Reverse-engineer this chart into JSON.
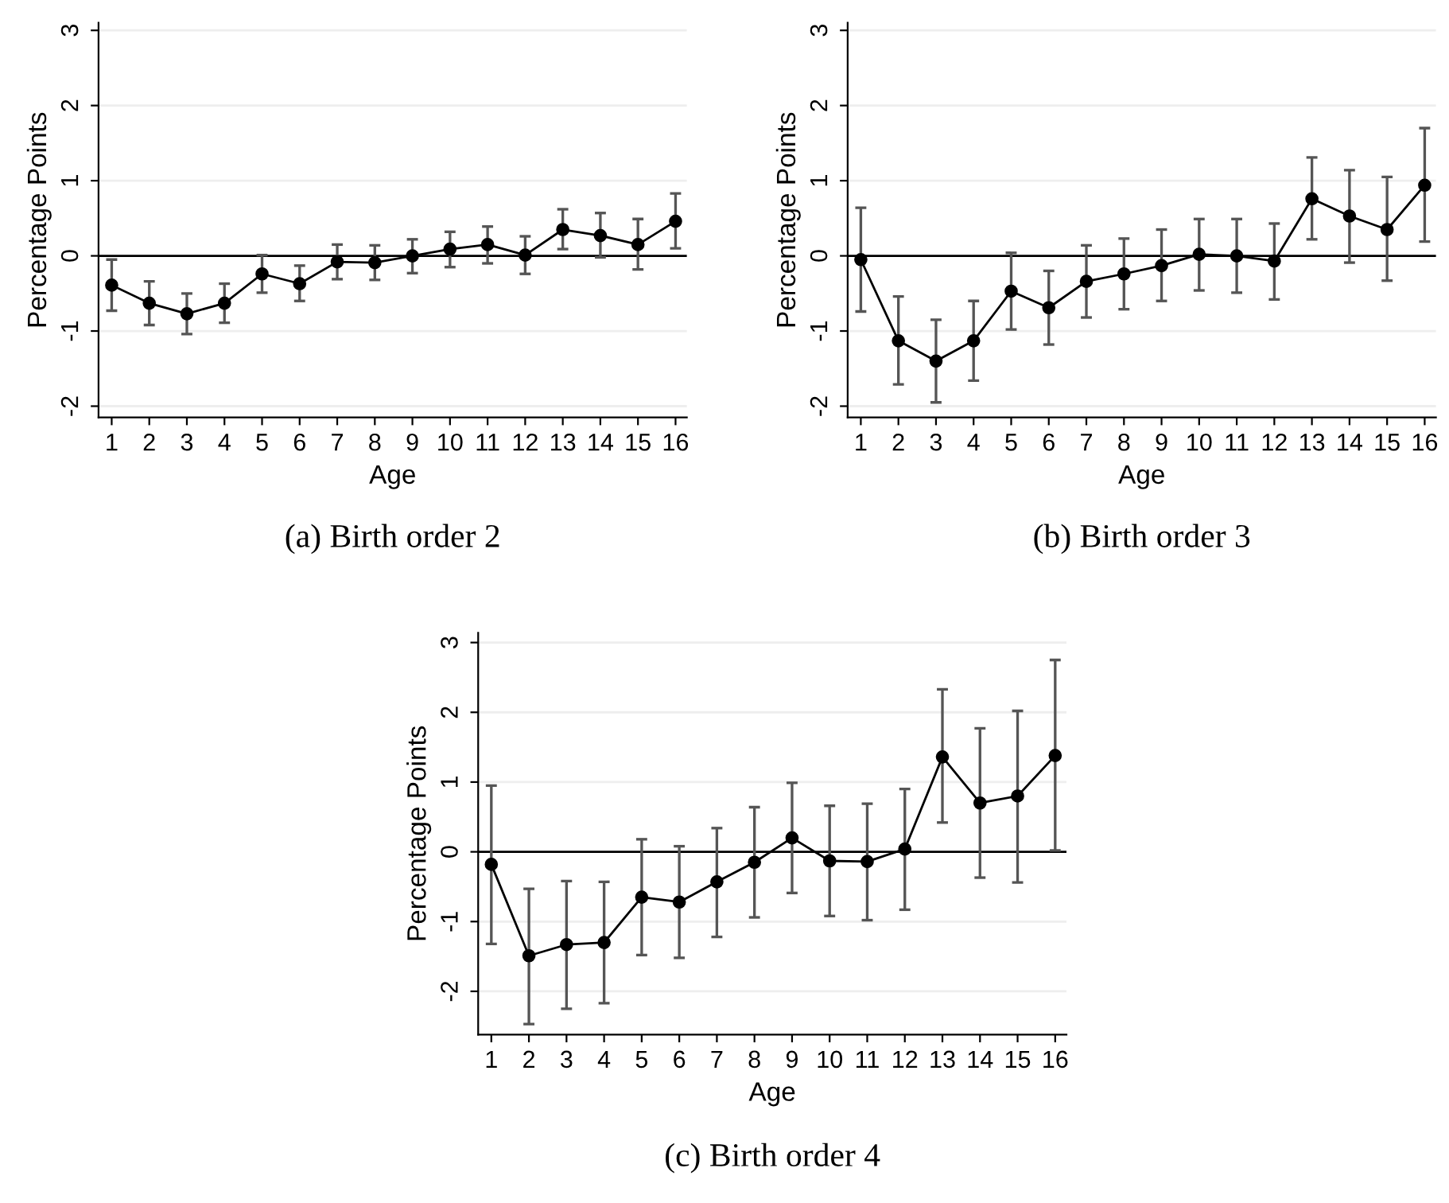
{
  "chart_data": [
    {
      "type": "line",
      "title": "(a) Birth order 2",
      "xlabel": "Age",
      "ylabel": "Percentage Points",
      "categories": [
        "1",
        "2",
        "3",
        "4",
        "5",
        "6",
        "7",
        "8",
        "9",
        "10",
        "11",
        "12",
        "13",
        "14",
        "15",
        "16"
      ],
      "series": [
        {
          "color": "#000000",
          "values": [
            -0.39,
            -0.63,
            -0.77,
            -0.63,
            -0.24,
            -0.37,
            -0.08,
            -0.09,
            0.0,
            0.09,
            0.15,
            0.01,
            0.35,
            0.27,
            0.15,
            0.46
          ],
          "errors": [
            [
              -0.73,
              -0.05
            ],
            [
              -0.92,
              -0.34
            ],
            [
              -1.04,
              -0.5
            ],
            [
              -0.89,
              -0.37
            ],
            [
              -0.49,
              0.01
            ],
            [
              -0.6,
              -0.13
            ],
            [
              -0.31,
              0.15
            ],
            [
              -0.32,
              0.14
            ],
            [
              -0.23,
              0.22
            ],
            [
              -0.15,
              0.32
            ],
            [
              -0.1,
              0.39
            ],
            [
              -0.24,
              0.26
            ],
            [
              0.09,
              0.62
            ],
            [
              -0.02,
              0.57
            ],
            [
              -0.18,
              0.49
            ],
            [
              0.1,
              0.83
            ]
          ]
        }
      ],
      "ylim": [
        -2.15,
        3.1
      ],
      "yticks": [
        -2,
        -1,
        0,
        1,
        2,
        3
      ],
      "grid": "y",
      "marker": "circle",
      "line_style": "solid",
      "ref_lines": [
        {
          "axis": "y",
          "value": 0,
          "color": "#000000"
        }
      ]
    },
    {
      "type": "line",
      "title": "(b) Birth order 3",
      "xlabel": "Age",
      "ylabel": "Percentage Points",
      "categories": [
        "1",
        "2",
        "3",
        "4",
        "5",
        "6",
        "7",
        "8",
        "9",
        "10",
        "11",
        "12",
        "13",
        "14",
        "15",
        "16"
      ],
      "series": [
        {
          "color": "#000000",
          "values": [
            -0.05,
            -1.13,
            -1.4,
            -1.13,
            -0.47,
            -0.69,
            -0.34,
            -0.24,
            -0.13,
            0.02,
            0.0,
            -0.07,
            0.76,
            0.53,
            0.35,
            0.94
          ],
          "errors": [
            [
              -0.74,
              0.64
            ],
            [
              -1.71,
              -0.54
            ],
            [
              -1.95,
              -0.85
            ],
            [
              -1.66,
              -0.6
            ],
            [
              -0.98,
              0.04
            ],
            [
              -1.18,
              -0.2
            ],
            [
              -0.82,
              0.14
            ],
            [
              -0.71,
              0.23
            ],
            [
              -0.6,
              0.35
            ],
            [
              -0.46,
              0.49
            ],
            [
              -0.49,
              0.49
            ],
            [
              -0.58,
              0.43
            ],
            [
              0.22,
              1.31
            ],
            [
              -0.09,
              1.14
            ],
            [
              -0.33,
              1.05
            ],
            [
              0.19,
              1.7
            ]
          ]
        }
      ],
      "ylim": [
        -2.15,
        3.1
      ],
      "yticks": [
        -2,
        -1,
        0,
        1,
        2,
        3
      ],
      "grid": "y",
      "marker": "circle",
      "line_style": "solid",
      "ref_lines": [
        {
          "axis": "y",
          "value": 0,
          "color": "#000000"
        }
      ]
    },
    {
      "type": "line",
      "title": "(c) Birth order 4",
      "xlabel": "Age",
      "ylabel": "Percentage Points",
      "categories": [
        "1",
        "2",
        "3",
        "4",
        "5",
        "6",
        "7",
        "8",
        "9",
        "10",
        "11",
        "12",
        "13",
        "14",
        "15",
        "16"
      ],
      "series": [
        {
          "color": "#000000",
          "values": [
            -0.18,
            -1.49,
            -1.33,
            -1.3,
            -0.65,
            -0.72,
            -0.43,
            -0.15,
            0.2,
            -0.13,
            -0.14,
            0.04,
            1.36,
            0.7,
            0.8,
            1.38
          ],
          "errors": [
            [
              -1.32,
              0.95
            ],
            [
              -2.47,
              -0.53
            ],
            [
              -2.25,
              -0.42
            ],
            [
              -2.17,
              -0.43
            ],
            [
              -1.48,
              0.18
            ],
            [
              -1.52,
              0.08
            ],
            [
              -1.22,
              0.34
            ],
            [
              -0.94,
              0.64
            ],
            [
              -0.59,
              0.99
            ],
            [
              -0.92,
              0.66
            ],
            [
              -0.98,
              0.69
            ],
            [
              -0.83,
              0.9
            ],
            [
              0.42,
              2.33
            ],
            [
              -0.37,
              1.77
            ],
            [
              -0.44,
              2.02
            ],
            [
              0.02,
              2.75
            ]
          ]
        }
      ],
      "ylim": [
        -2.62,
        3.14
      ],
      "yticks": [
        -2,
        -1,
        0,
        1,
        2,
        3
      ],
      "grid": "y",
      "marker": "circle",
      "line_style": "solid",
      "ref_lines": [
        {
          "axis": "y",
          "value": 0,
          "color": "#000000"
        }
      ]
    }
  ]
}
